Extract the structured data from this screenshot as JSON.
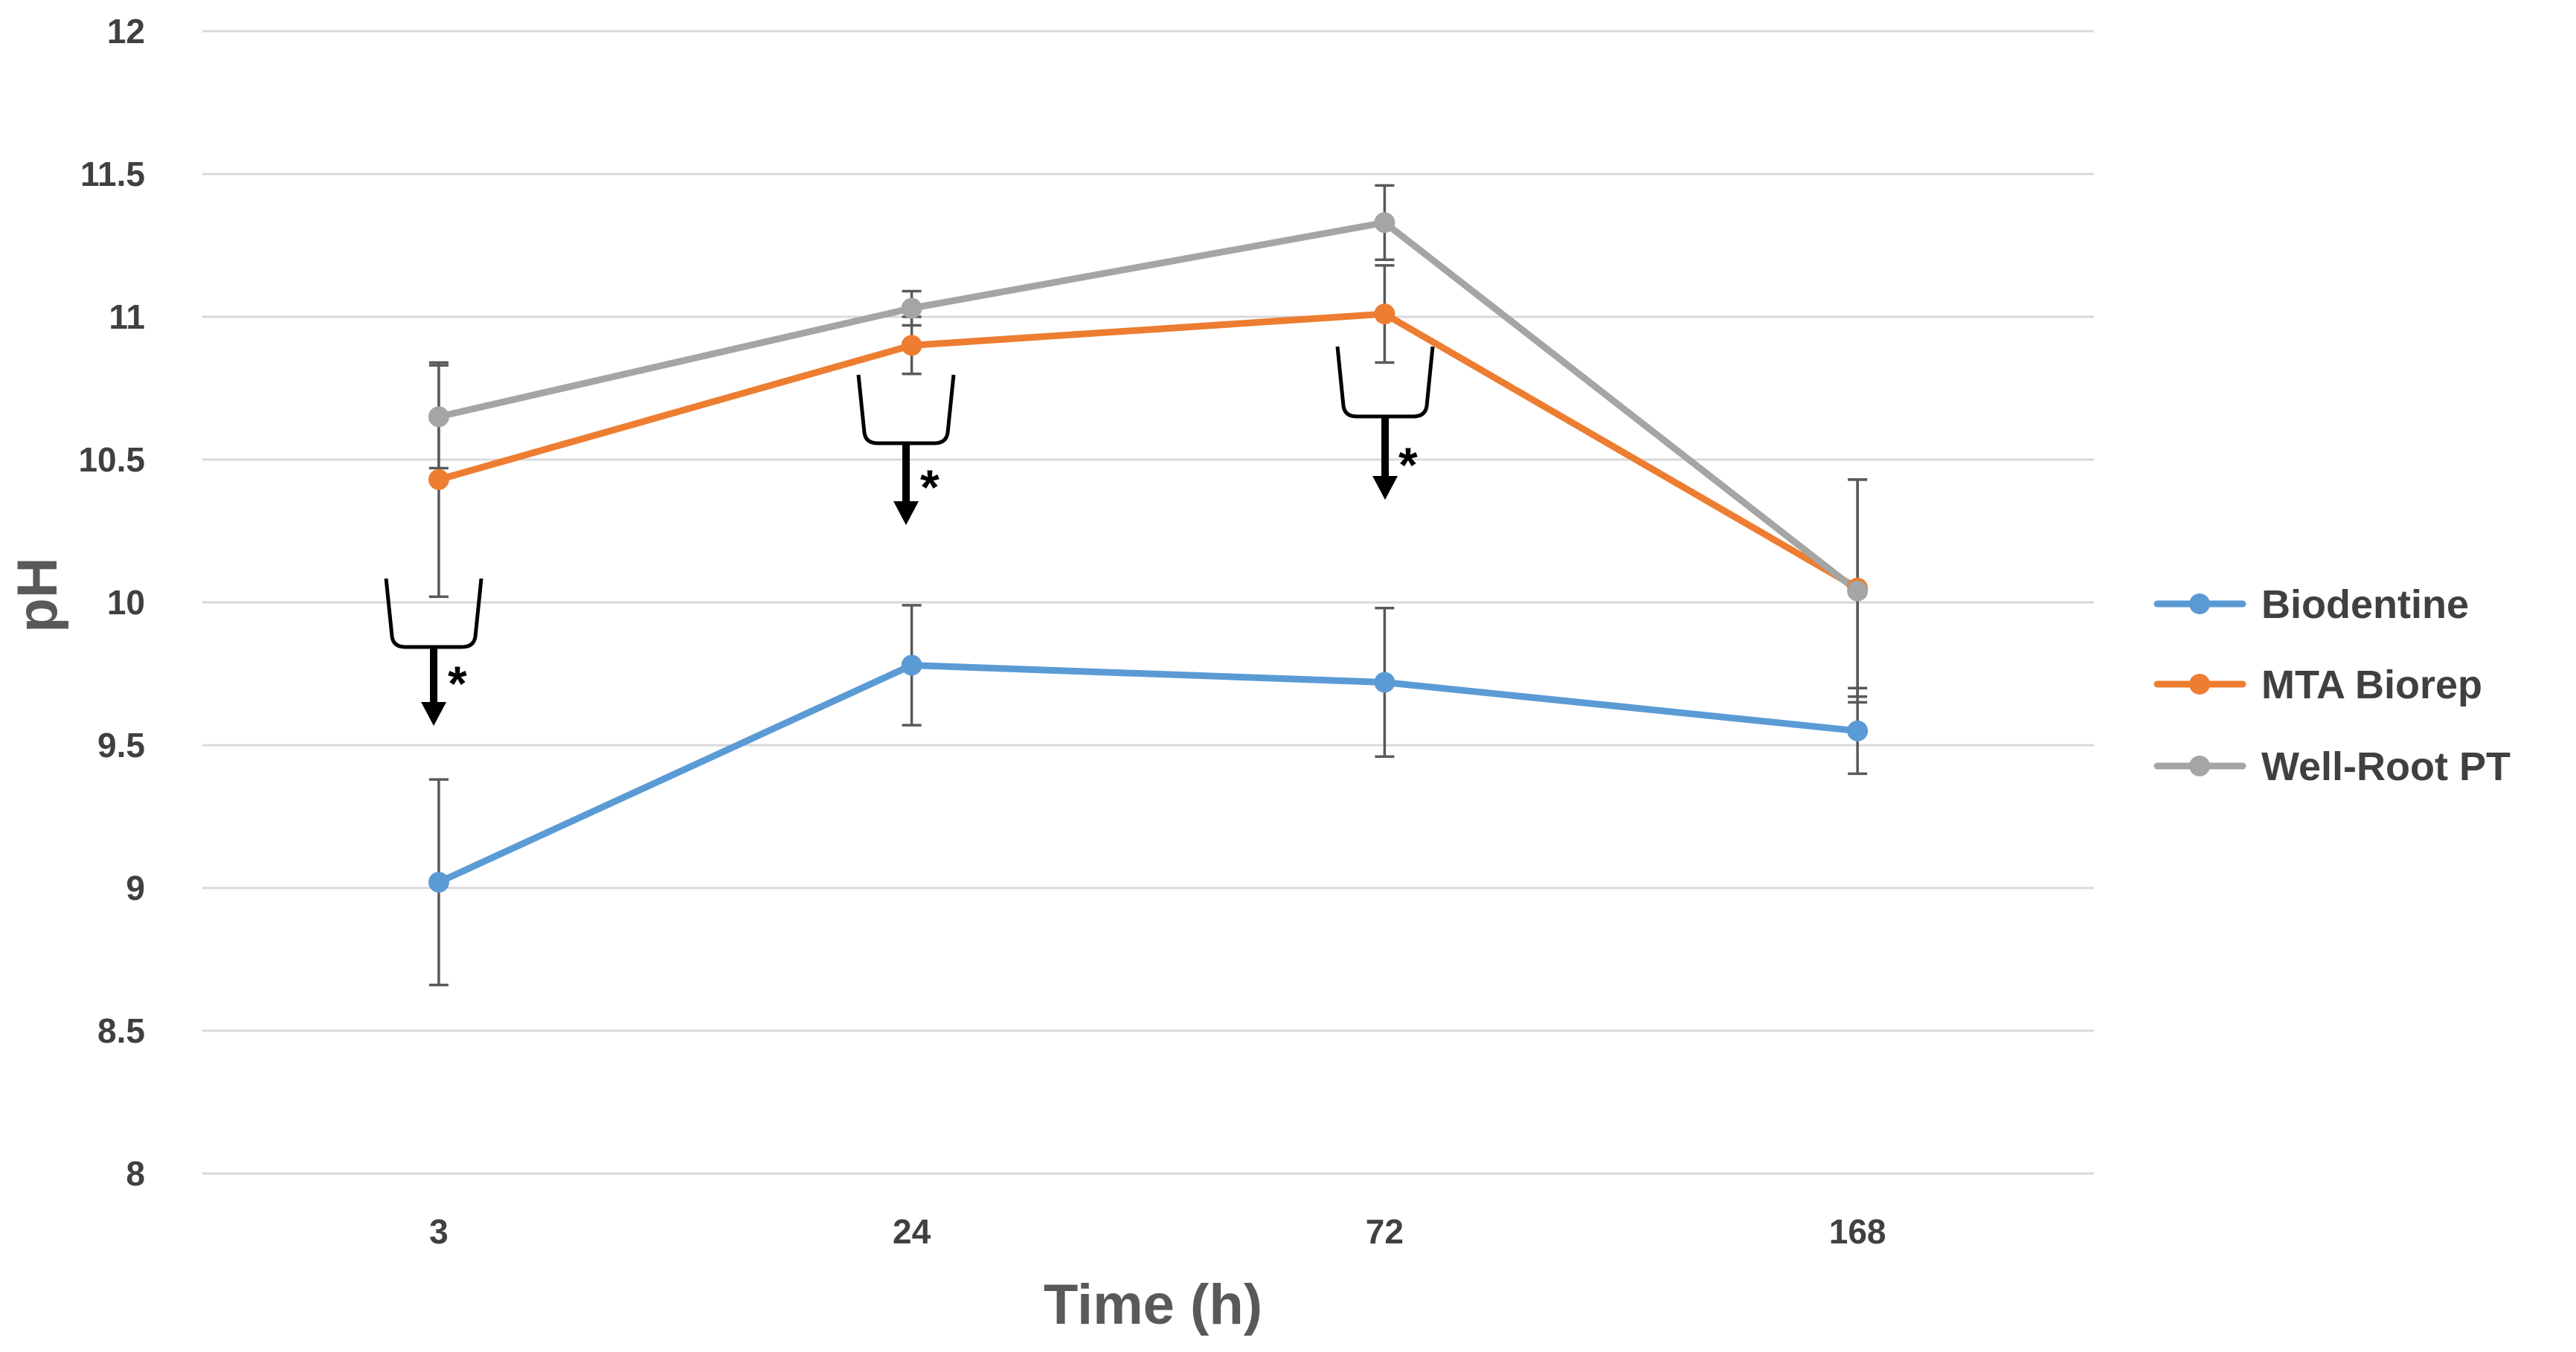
{
  "chart_data": {
    "type": "line",
    "title": "",
    "xlabel": "Time (h)",
    "ylabel": "pH",
    "categories": [
      "3",
      "24",
      "72",
      "168"
    ],
    "ylim": [
      8,
      12
    ],
    "yticks": [
      "8",
      "8.5",
      "9",
      "9.5",
      "10",
      "10.5",
      "11",
      "11.5",
      "12"
    ],
    "grid": true,
    "legend_position": "right",
    "series": [
      {
        "name": "Biodentine",
        "color": "#5B9BD5",
        "values": [
          9.02,
          9.78,
          9.72,
          9.55
        ],
        "err": [
          0.36,
          0.21,
          0.26,
          0.15
        ]
      },
      {
        "name": "MTA Biorep",
        "color": "#ED7D31",
        "values": [
          10.43,
          10.9,
          11.01,
          10.05
        ],
        "err": [
          0.41,
          0.1,
          0.17,
          0.38
        ]
      },
      {
        "name": "Well-Root PT",
        "color": "#A5A5A5",
        "values": [
          10.65,
          11.03,
          11.33,
          10.04
        ],
        "err": [
          0.18,
          0.06,
          0.13,
          0.39
        ]
      }
    ],
    "annotations": [
      {
        "category": "3",
        "label": "*"
      },
      {
        "category": "24",
        "label": "*"
      },
      {
        "category": "72",
        "label": "*"
      }
    ]
  }
}
